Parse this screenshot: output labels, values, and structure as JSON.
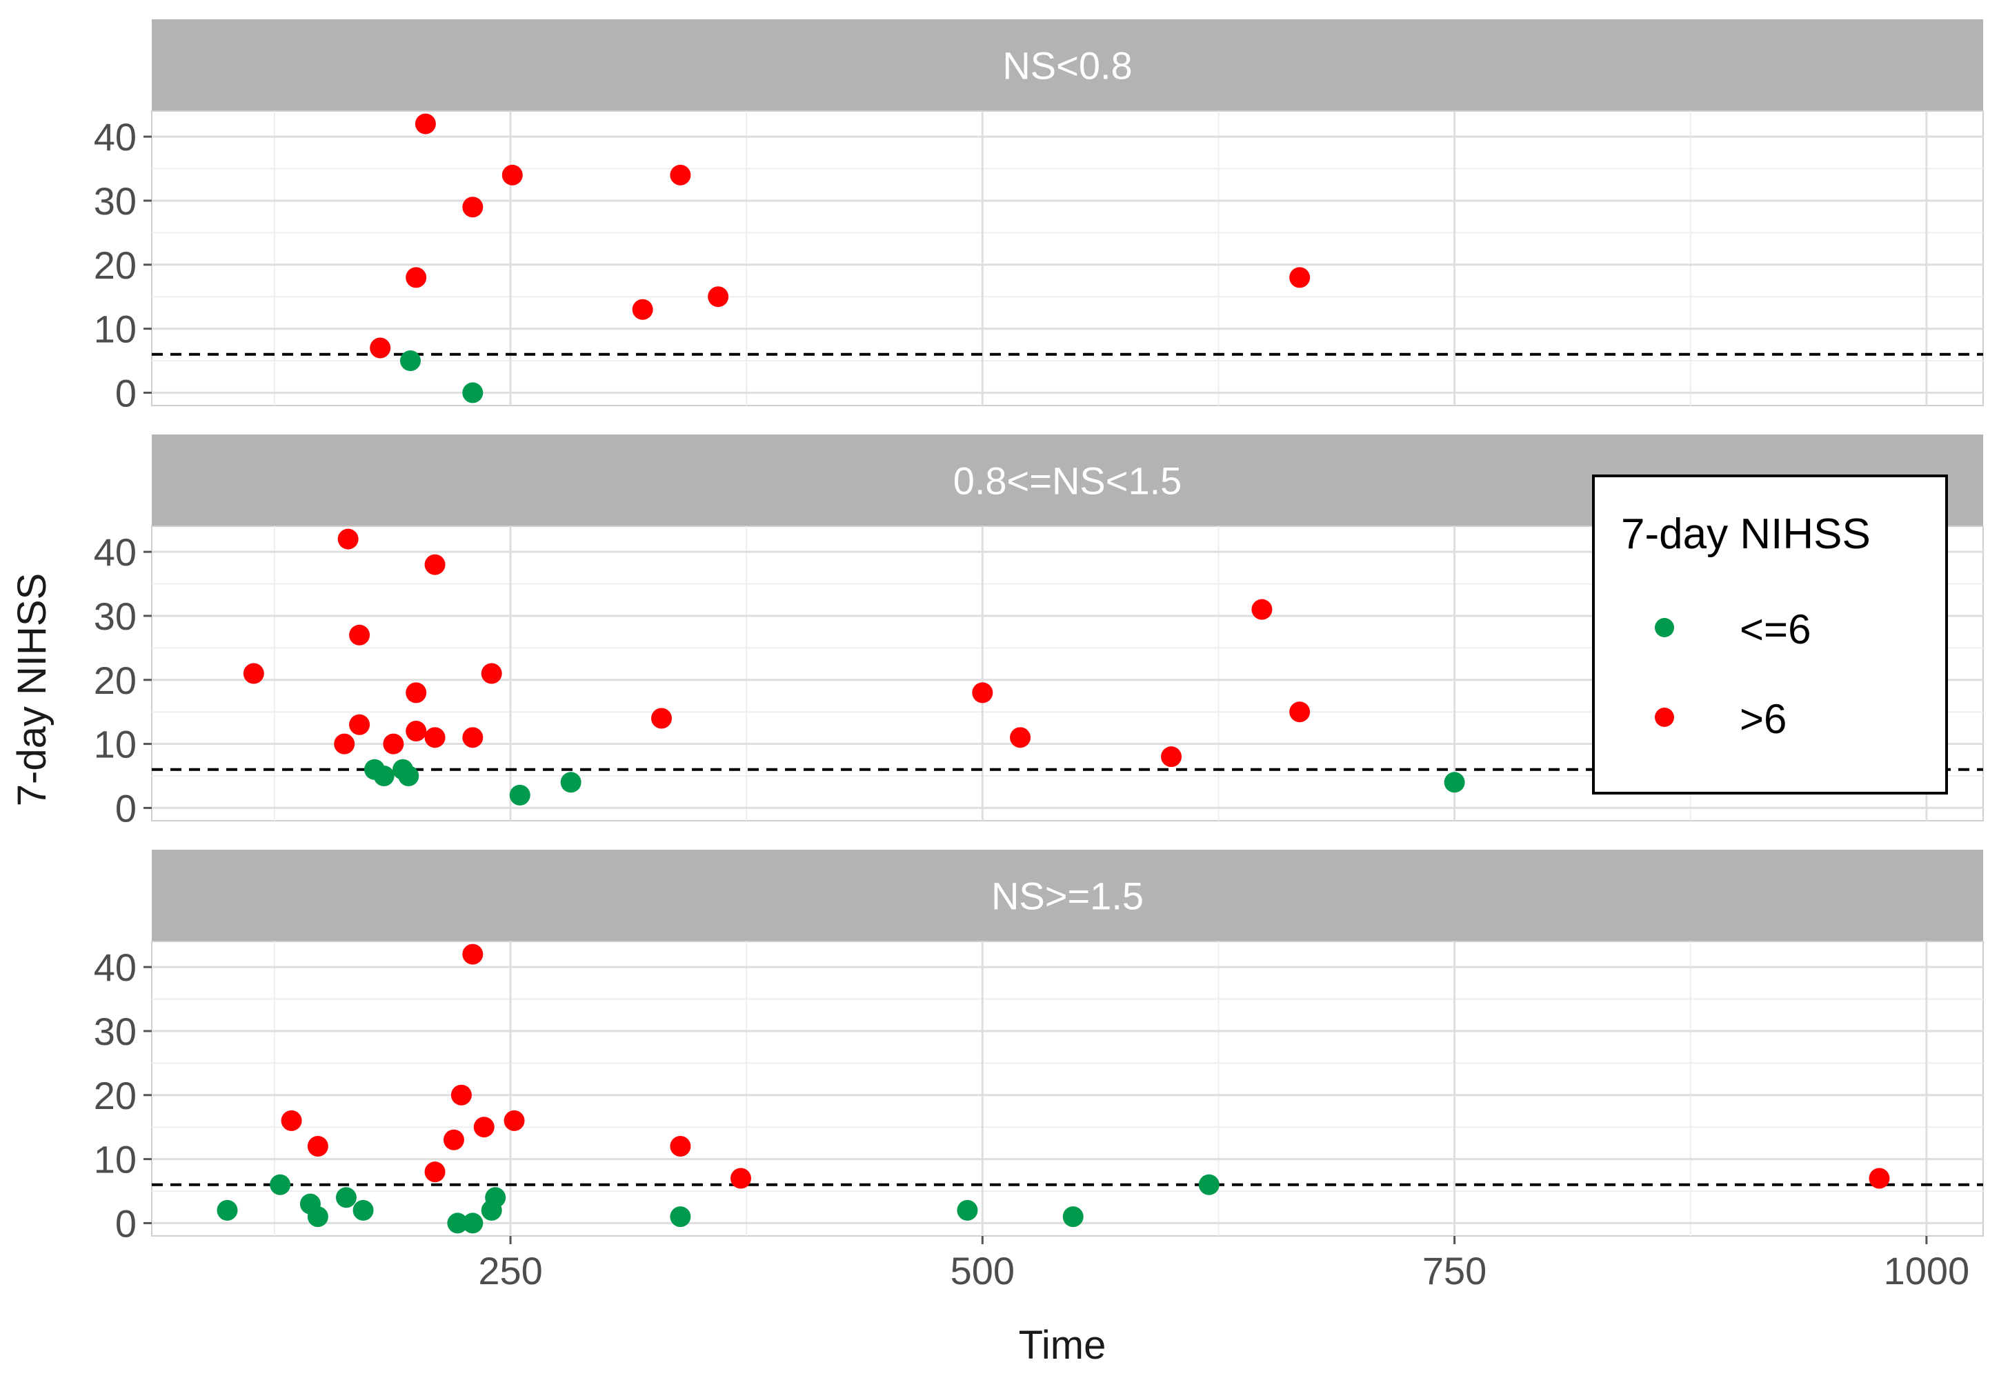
{
  "chart_data": {
    "type": "scatter",
    "xlabel": "Time",
    "ylabel": "7-day NIHSS",
    "x_ticks": [
      250,
      500,
      750,
      1000
    ],
    "y_ticks": [
      0,
      10,
      20,
      30,
      40
    ],
    "xlim": [
      60,
      1030
    ],
    "ylim": [
      -2,
      44
    ],
    "reference_line": {
      "y": 6,
      "style": "dashed",
      "color": "#000000"
    },
    "grid": true,
    "legend": {
      "title": "7-day NIHSS",
      "placement": "right",
      "entries": [
        {
          "label": "<=6",
          "color": "#009a4e"
        },
        {
          "label": ">6",
          "color": "#ff0000"
        }
      ]
    },
    "colors": {
      "le6": "#009a4e",
      "gt6": "#ff0000",
      "strip": "#b3b3b3",
      "grid": "#dedede"
    },
    "panels": [
      {
        "strip": "NS<0.8",
        "points": [
          {
            "x": 205,
            "y": 42,
            "group": ">6"
          },
          {
            "x": 230,
            "y": 29,
            "group": ">6"
          },
          {
            "x": 251,
            "y": 34,
            "group": ">6"
          },
          {
            "x": 200,
            "y": 18,
            "group": ">6"
          },
          {
            "x": 181,
            "y": 7,
            "group": ">6"
          },
          {
            "x": 197,
            "y": 5,
            "group": "<=6"
          },
          {
            "x": 230,
            "y": 0,
            "group": "<=6"
          },
          {
            "x": 340,
            "y": 34,
            "group": ">6"
          },
          {
            "x": 320,
            "y": 13,
            "group": ">6"
          },
          {
            "x": 360,
            "y": 15,
            "group": ">6"
          },
          {
            "x": 668,
            "y": 18,
            "group": ">6"
          }
        ]
      },
      {
        "strip": "0.8<=NS<1.5",
        "points": [
          {
            "x": 114,
            "y": 21,
            "group": ">6"
          },
          {
            "x": 164,
            "y": 42,
            "group": ">6"
          },
          {
            "x": 170,
            "y": 27,
            "group": ">6"
          },
          {
            "x": 170,
            "y": 13,
            "group": ">6"
          },
          {
            "x": 162,
            "y": 10,
            "group": ">6"
          },
          {
            "x": 188,
            "y": 10,
            "group": ">6"
          },
          {
            "x": 200,
            "y": 18,
            "group": ">6"
          },
          {
            "x": 200,
            "y": 12,
            "group": ">6"
          },
          {
            "x": 210,
            "y": 11,
            "group": ">6"
          },
          {
            "x": 210,
            "y": 38,
            "group": ">6"
          },
          {
            "x": 230,
            "y": 11,
            "group": ">6"
          },
          {
            "x": 240,
            "y": 21,
            "group": ">6"
          },
          {
            "x": 178,
            "y": 6,
            "group": "<=6"
          },
          {
            "x": 183,
            "y": 5,
            "group": "<=6"
          },
          {
            "x": 193,
            "y": 6,
            "group": "<=6"
          },
          {
            "x": 196,
            "y": 5,
            "group": "<=6"
          },
          {
            "x": 255,
            "y": 2,
            "group": "<=6"
          },
          {
            "x": 282,
            "y": 4,
            "group": "<=6"
          },
          {
            "x": 330,
            "y": 14,
            "group": ">6"
          },
          {
            "x": 500,
            "y": 18,
            "group": ">6"
          },
          {
            "x": 520,
            "y": 11,
            "group": ">6"
          },
          {
            "x": 600,
            "y": 8,
            "group": ">6"
          },
          {
            "x": 648,
            "y": 31,
            "group": ">6"
          },
          {
            "x": 668,
            "y": 15,
            "group": ">6"
          },
          {
            "x": 750,
            "y": 4,
            "group": "<=6"
          }
        ]
      },
      {
        "strip": "NS>=1.5",
        "points": [
          {
            "x": 230,
            "y": 42,
            "group": ">6"
          },
          {
            "x": 224,
            "y": 20,
            "group": ">6"
          },
          {
            "x": 134,
            "y": 16,
            "group": ">6"
          },
          {
            "x": 148,
            "y": 12,
            "group": ">6"
          },
          {
            "x": 220,
            "y": 13,
            "group": ">6"
          },
          {
            "x": 236,
            "y": 15,
            "group": ">6"
          },
          {
            "x": 252,
            "y": 16,
            "group": ">6"
          },
          {
            "x": 210,
            "y": 8,
            "group": ">6"
          },
          {
            "x": 100,
            "y": 2,
            "group": "<=6"
          },
          {
            "x": 128,
            "y": 6,
            "group": "<=6"
          },
          {
            "x": 144,
            "y": 3,
            "group": "<=6"
          },
          {
            "x": 148,
            "y": 1,
            "group": "<=6"
          },
          {
            "x": 163,
            "y": 4,
            "group": "<=6"
          },
          {
            "x": 172,
            "y": 2,
            "group": "<=6"
          },
          {
            "x": 222,
            "y": 0,
            "group": "<=6"
          },
          {
            "x": 230,
            "y": 0,
            "group": "<=6"
          },
          {
            "x": 240,
            "y": 2,
            "group": "<=6"
          },
          {
            "x": 242,
            "y": 4,
            "group": "<=6"
          },
          {
            "x": 340,
            "y": 12,
            "group": ">6"
          },
          {
            "x": 340,
            "y": 1,
            "group": "<=6"
          },
          {
            "x": 372,
            "y": 7,
            "group": ">6"
          },
          {
            "x": 492,
            "y": 2,
            "group": "<=6"
          },
          {
            "x": 548,
            "y": 1,
            "group": "<=6"
          },
          {
            "x": 620,
            "y": 6,
            "group": "<=6"
          },
          {
            "x": 975,
            "y": 7,
            "group": ">6"
          }
        ]
      }
    ]
  }
}
